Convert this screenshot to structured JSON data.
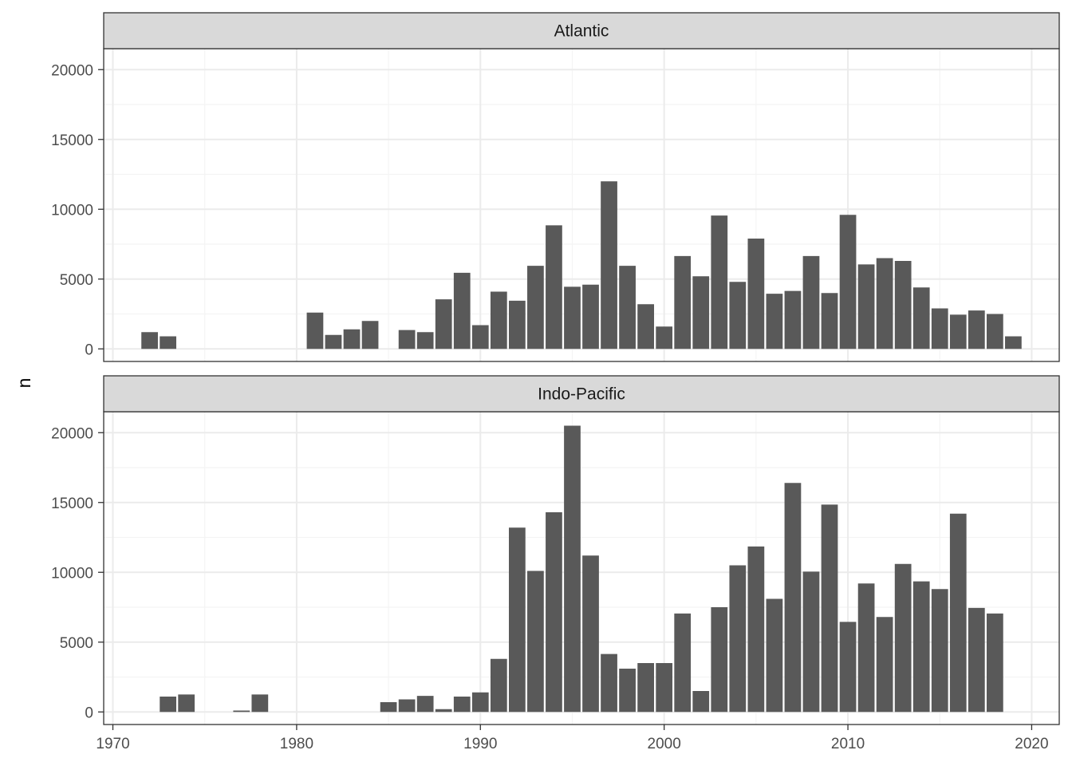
{
  "chart_data": {
    "type": "bar",
    "ylabel": "n",
    "xlabel": "",
    "xlim": [
      1969.5,
      2021.5
    ],
    "ylim": [
      -900,
      21500
    ],
    "x_ticks": [
      1970,
      1980,
      1990,
      2000,
      2010,
      2020
    ],
    "y_ticks": [
      0,
      5000,
      10000,
      15000,
      20000
    ],
    "grid": true,
    "colors": {
      "bar": "#595959",
      "strip": "#d9d9d9",
      "grid_major": "#ebebeb",
      "grid_minor": "#f4f4f4",
      "panel_border": "#333333"
    },
    "panels": [
      {
        "name": "Atlantic",
        "x": [
          1972,
          1973,
          1981,
          1982,
          1983,
          1984,
          1986,
          1987,
          1988,
          1989,
          1990,
          1991,
          1992,
          1993,
          1994,
          1995,
          1996,
          1997,
          1998,
          1999,
          2000,
          2001,
          2002,
          2003,
          2004,
          2005,
          2006,
          2007,
          2008,
          2009,
          2010,
          2011,
          2012,
          2013,
          2014,
          2015,
          2016,
          2017,
          2018,
          2019
        ],
        "values": [
          1200,
          900,
          2600,
          1000,
          1400,
          2000,
          1350,
          1200,
          3550,
          5450,
          1700,
          4100,
          3450,
          5950,
          8850,
          4450,
          4600,
          12000,
          5950,
          3200,
          1600,
          6650,
          5200,
          9550,
          4800,
          7900,
          3950,
          4150,
          6650,
          4000,
          9600,
          6050,
          6500,
          6300,
          4400,
          2900,
          2450,
          2750,
          2500,
          900
        ]
      },
      {
        "name": "Indo-Pacific",
        "x": [
          1973,
          1974,
          1977,
          1978,
          1985,
          1986,
          1987,
          1988,
          1989,
          1990,
          1991,
          1992,
          1993,
          1994,
          1995,
          1996,
          1997,
          1998,
          1999,
          2000,
          2001,
          2002,
          2003,
          2004,
          2005,
          2006,
          2007,
          2008,
          2009,
          2010,
          2011,
          2012,
          2013,
          2014,
          2015,
          2016,
          2017,
          2018
        ],
        "values": [
          1100,
          1250,
          100,
          1250,
          700,
          900,
          1150,
          200,
          1100,
          1400,
          3800,
          13200,
          10100,
          14300,
          20500,
          11200,
          4150,
          3100,
          3500,
          3500,
          7050,
          1500,
          7500,
          10500,
          11850,
          8100,
          16400,
          10050,
          14850,
          6450,
          9200,
          6800,
          10600,
          9350,
          8800,
          14200,
          7450,
          7050
        ]
      }
    ]
  }
}
